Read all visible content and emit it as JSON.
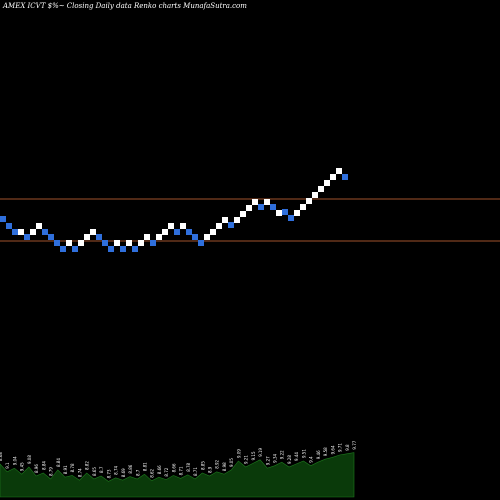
{
  "title": "AMEX  ICVT $%~  Closing Daily data  Renko  charts MunafaSutra.com",
  "colors": {
    "background": "#000000",
    "up_brick": "#ffffff",
    "down_brick": "#2f6fdc",
    "reference_line": "#a0522d",
    "volume_fill": "#0a3a0a",
    "volume_edge": "#1d7a1d"
  },
  "chart_data": {
    "type": "renko",
    "reference_lines": [
      199,
      241
    ],
    "bricks": [
      {
        "d": "down",
        "y": 219
      },
      {
        "d": "down",
        "y": 226
      },
      {
        "d": "down",
        "y": 232
      },
      {
        "d": "up",
        "y": 232
      },
      {
        "d": "down",
        "y": 237
      },
      {
        "d": "up",
        "y": 232
      },
      {
        "d": "up",
        "y": 226
      },
      {
        "d": "down",
        "y": 232
      },
      {
        "d": "down",
        "y": 237
      },
      {
        "d": "down",
        "y": 243
      },
      {
        "d": "down",
        "y": 249
      },
      {
        "d": "up",
        "y": 243
      },
      {
        "d": "down",
        "y": 249
      },
      {
        "d": "up",
        "y": 243
      },
      {
        "d": "up",
        "y": 237
      },
      {
        "d": "up",
        "y": 232
      },
      {
        "d": "down",
        "y": 237
      },
      {
        "d": "down",
        "y": 243
      },
      {
        "d": "down",
        "y": 249
      },
      {
        "d": "up",
        "y": 243
      },
      {
        "d": "down",
        "y": 249
      },
      {
        "d": "up",
        "y": 243
      },
      {
        "d": "down",
        "y": 249
      },
      {
        "d": "up",
        "y": 243
      },
      {
        "d": "up",
        "y": 237
      },
      {
        "d": "down",
        "y": 243
      },
      {
        "d": "up",
        "y": 237
      },
      {
        "d": "up",
        "y": 232
      },
      {
        "d": "up",
        "y": 226
      },
      {
        "d": "down",
        "y": 232
      },
      {
        "d": "up",
        "y": 226
      },
      {
        "d": "down",
        "y": 232
      },
      {
        "d": "down",
        "y": 237
      },
      {
        "d": "down",
        "y": 243
      },
      {
        "d": "up",
        "y": 237
      },
      {
        "d": "up",
        "y": 232
      },
      {
        "d": "up",
        "y": 226
      },
      {
        "d": "up",
        "y": 220
      },
      {
        "d": "down",
        "y": 225
      },
      {
        "d": "up",
        "y": 220
      },
      {
        "d": "up",
        "y": 214
      },
      {
        "d": "up",
        "y": 208
      },
      {
        "d": "up",
        "y": 202
      },
      {
        "d": "down",
        "y": 207
      },
      {
        "d": "up",
        "y": 202
      },
      {
        "d": "down",
        "y": 207
      },
      {
        "d": "up",
        "y": 213
      },
      {
        "d": "down",
        "y": 212
      },
      {
        "d": "down",
        "y": 218
      },
      {
        "d": "up",
        "y": 213
      },
      {
        "d": "up",
        "y": 207
      },
      {
        "d": "up",
        "y": 201
      },
      {
        "d": "up",
        "y": 195
      },
      {
        "d": "up",
        "y": 189
      },
      {
        "d": "up",
        "y": 183
      },
      {
        "d": "up",
        "y": 177
      },
      {
        "d": "up",
        "y": 171
      },
      {
        "d": "down",
        "y": 177
      }
    ],
    "volume_labels": [
      "8.68",
      "9.1",
      "9.04",
      "9.45",
      "9.08",
      "8.96",
      "8.84",
      "8.79",
      "8.84",
      "8.91",
      "8.78",
      "8.74",
      "8.82",
      "8.65",
      "8.7",
      "8.73",
      "8.74",
      "8.69",
      "8.86",
      "8.7",
      "8.81",
      "8.62",
      "8.66",
      "8.72",
      "8.66",
      "8.71",
      "8.78",
      "8.71",
      "8.85",
      "8.9",
      "8.92",
      "8.98",
      "9.05",
      "9.09",
      "9.21",
      "9.15",
      "9.19",
      "9.27",
      "9.34",
      "9.22",
      "9.28",
      "9.44",
      "9.51",
      "9.4",
      "9.46",
      "9.58",
      "9.64",
      "9.71",
      "9.8",
      "9.77"
    ],
    "volume_heights": [
      0.55,
      0.42,
      0.48,
      0.38,
      0.5,
      0.35,
      0.4,
      0.3,
      0.45,
      0.33,
      0.36,
      0.28,
      0.4,
      0.3,
      0.35,
      0.26,
      0.32,
      0.28,
      0.34,
      0.3,
      0.38,
      0.27,
      0.33,
      0.29,
      0.36,
      0.31,
      0.37,
      0.3,
      0.4,
      0.35,
      0.42,
      0.38,
      0.45,
      0.6,
      0.5,
      0.56,
      0.62,
      0.48,
      0.52,
      0.58,
      0.5,
      0.55,
      0.6,
      0.52,
      0.58,
      0.63,
      0.66,
      0.7,
      0.72,
      0.74
    ]
  }
}
